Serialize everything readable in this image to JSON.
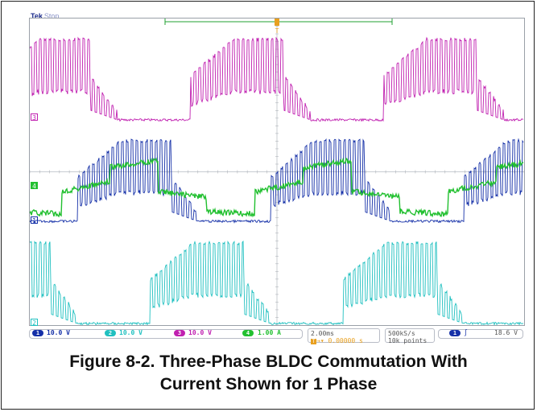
{
  "header": {
    "brand": "Tek",
    "state": "Stop"
  },
  "channels": {
    "ch3": {
      "marker": "3",
      "color": "#c020b0"
    },
    "ch4": {
      "marker": "4",
      "color": "#22c030"
    },
    "ch1": {
      "marker": "1",
      "color": "#1530a8"
    },
    "ch2": {
      "marker": "2",
      "color": "#20c0c0"
    }
  },
  "trigger_marker": "T",
  "status": {
    "ch1": {
      "badge": "1",
      "value": "10.0 V",
      "color": "#1530a8"
    },
    "ch2": {
      "badge": "2",
      "value": "10.0 V",
      "color": "#20c0c0"
    },
    "ch3": {
      "badge": "3",
      "value": "10.0 V",
      "color": "#c020b0"
    },
    "ch4": {
      "badge": "4",
      "value": "1.00 A",
      "color": "#22c030"
    },
    "timebase": "2.00ms",
    "trigger_pos": "0.00000 s",
    "sample_rate": "500kS/s",
    "record_length": "10k points",
    "trigger": {
      "source": "1",
      "slope_icon": "rising-edge",
      "level": "18.6 V"
    }
  },
  "caption": {
    "line1": "Figure 8-2. Three-Phase BLDC Commutation With",
    "line2": "Current Shown for 1 Phase"
  }
}
